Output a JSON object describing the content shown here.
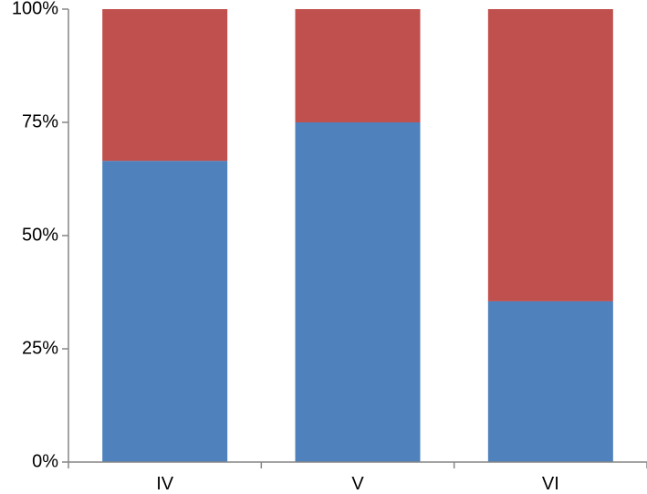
{
  "chart_data": {
    "type": "bar",
    "stacked": true,
    "percent": true,
    "categories": [
      "IV",
      "V",
      "VI"
    ],
    "series": [
      {
        "values": [
          66.5,
          75,
          35.5
        ],
        "color": "#4F81BD"
      },
      {
        "values": [
          33.5,
          25,
          64.5
        ],
        "color": "#C0504D"
      }
    ],
    "ylim": [
      0,
      100
    ],
    "yticks": [
      "0%",
      "25%",
      "50%",
      "75%",
      "100%"
    ],
    "title": "",
    "xlabel": "",
    "ylabel": "",
    "grid": false,
    "legend": "none"
  },
  "colors": {
    "axis": "#868686"
  }
}
